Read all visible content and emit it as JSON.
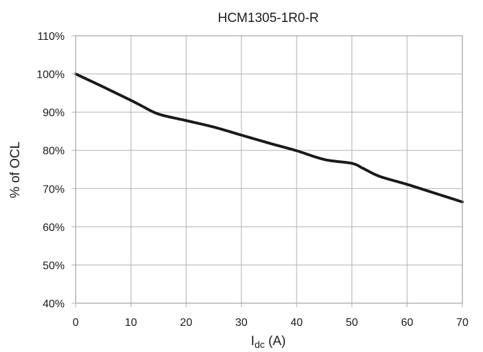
{
  "chart_data": {
    "type": "line",
    "title": "HCM1305-1R0-R",
    "xlabel": {
      "main": "I",
      "sub": "dc",
      "unit": " (A)"
    },
    "ylabel": "% of OCL",
    "xlim": [
      0,
      70
    ],
    "ylim": [
      40,
      110
    ],
    "x_ticks": [
      0,
      10,
      20,
      30,
      40,
      50,
      60,
      70
    ],
    "y_ticks": [
      40,
      50,
      60,
      70,
      80,
      90,
      100,
      110
    ],
    "x_tick_labels": [
      "0",
      "10",
      "20",
      "30",
      "40",
      "50",
      "60",
      "70"
    ],
    "y_tick_labels": [
      "40%",
      "50%",
      "60%",
      "70%",
      "80%",
      "90%",
      "100%",
      "110%"
    ],
    "grid": true,
    "legend": "none",
    "series": [
      {
        "color": "#1a1a1a",
        "x": [
          0,
          5,
          10,
          12,
          15,
          20,
          25,
          30,
          35,
          40,
          45,
          50,
          52,
          55,
          60,
          65,
          70
        ],
        "y": [
          100,
          96.6,
          93.1,
          91.6,
          89.5,
          87.8,
          86.1,
          84.0,
          81.9,
          79.9,
          77.6,
          76.6,
          75.3,
          73.2,
          71.1,
          68.8,
          66.5
        ]
      }
    ]
  }
}
